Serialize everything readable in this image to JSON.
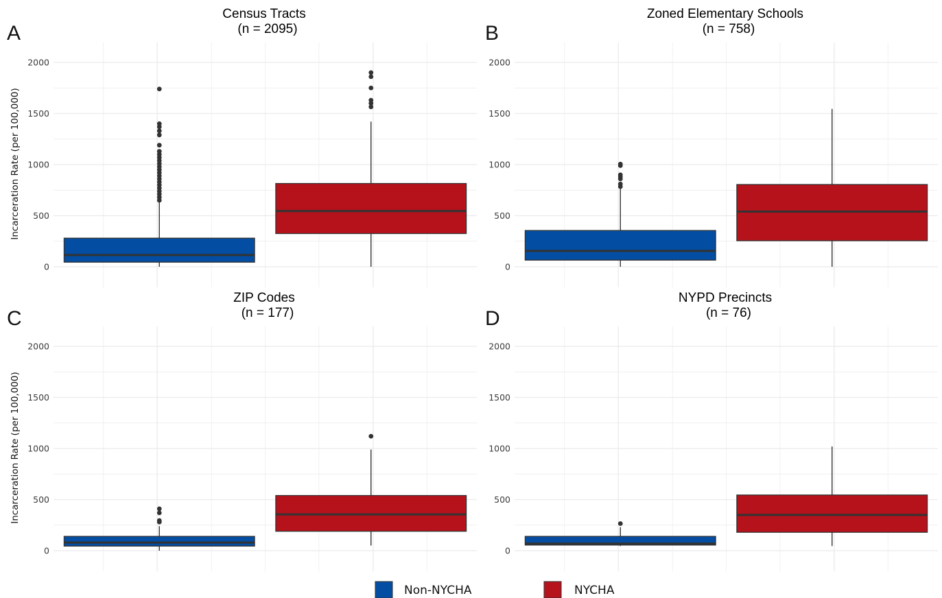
{
  "chart_data": [
    {
      "type": "box",
      "panel_label": "A",
      "title": "Census Tracts",
      "subtitle": "(n = 2095)",
      "ylabel": "Incarceration Rate (per 100,000)",
      "ylim": [
        0,
        2200
      ],
      "yticks": [
        "0",
        "500",
        "1000",
        "1500",
        "2000"
      ],
      "series": [
        {
          "name": "Non-NYCHA",
          "min": 0,
          "q1": 45,
          "median": 115,
          "q3": 280,
          "max": 640,
          "outliers": [
            650,
            680,
            710,
            740,
            770,
            800,
            830,
            860,
            890,
            920,
            950,
            980,
            1010,
            1040,
            1070,
            1100,
            1130,
            1190,
            1290,
            1330,
            1370,
            1400,
            1740
          ]
        },
        {
          "name": "NYCHA",
          "min": 0,
          "q1": 325,
          "median": 545,
          "q3": 815,
          "max": 1420,
          "outliers": [
            1565,
            1600,
            1630,
            1750,
            1860,
            1900
          ]
        }
      ]
    },
    {
      "type": "box",
      "panel_label": "B",
      "title": "Zoned Elementary Schools",
      "subtitle": "(n = 758)",
      "ylabel": "",
      "ylim": [
        0,
        2200
      ],
      "yticks": [
        "0",
        "500",
        "1000",
        "1500",
        "2000"
      ],
      "series": [
        {
          "name": "Non-NYCHA",
          "min": 0,
          "q1": 65,
          "median": 155,
          "q3": 355,
          "max": 770,
          "outliers": [
            785,
            810,
            860,
            880,
            900,
            990,
            1005
          ]
        },
        {
          "name": "NYCHA",
          "min": 0,
          "q1": 255,
          "median": 540,
          "q3": 805,
          "max": 1545,
          "outliers": []
        }
      ]
    },
    {
      "type": "box",
      "panel_label": "C",
      "title": "ZIP Codes",
      "subtitle": "(n = 177)",
      "ylabel": "Incarceration Rate (per 100,000)",
      "ylim": [
        0,
        2200
      ],
      "yticks": [
        "0",
        "500",
        "1000",
        "1500",
        "2000"
      ],
      "series": [
        {
          "name": "Non-NYCHA",
          "min": 0,
          "q1": 45,
          "median": 80,
          "q3": 140,
          "max": 240,
          "outliers": [
            280,
            295,
            370,
            410
          ]
        },
        {
          "name": "NYCHA",
          "min": 50,
          "q1": 190,
          "median": 355,
          "q3": 540,
          "max": 990,
          "outliers": [
            1120
          ]
        }
      ]
    },
    {
      "type": "box",
      "panel_label": "D",
      "title": "NYPD Precincts",
      "subtitle": "(n = 76)",
      "ylabel": "",
      "ylim": [
        0,
        2200
      ],
      "yticks": [
        "0",
        "500",
        "1000",
        "1500",
        "2000"
      ],
      "series": [
        {
          "name": "Non-NYCHA",
          "min": 45,
          "q1": 55,
          "median": 70,
          "q3": 140,
          "max": 230,
          "outliers": [
            265
          ]
        },
        {
          "name": "NYCHA",
          "min": 45,
          "q1": 180,
          "median": 350,
          "q3": 545,
          "max": 1020,
          "outliers": []
        }
      ]
    }
  ],
  "legend": {
    "position": "bottom",
    "items": [
      {
        "label": "Non-NYCHA",
        "color": "#034EA2"
      },
      {
        "label": "NYCHA",
        "color": "#B5121B"
      }
    ]
  },
  "colors": {
    "grid": "#ebebeb",
    "outline": "#333333"
  }
}
